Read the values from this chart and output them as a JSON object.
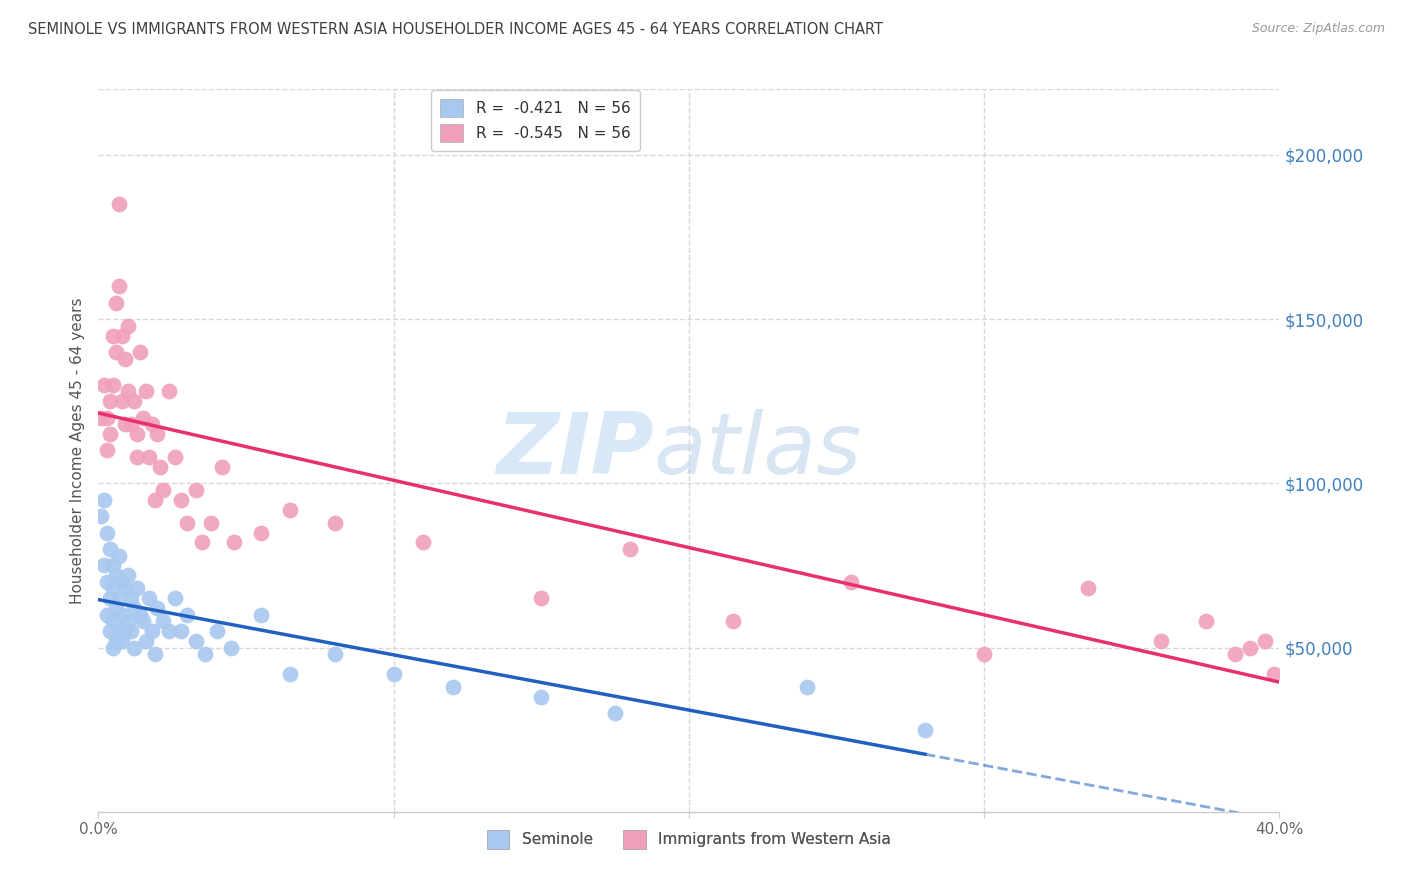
{
  "title": "SEMINOLE VS IMMIGRANTS FROM WESTERN ASIA HOUSEHOLDER INCOME AGES 45 - 64 YEARS CORRELATION CHART",
  "source": "Source: ZipAtlas.com",
  "ylabel": "Householder Income Ages 45 - 64 years",
  "x_min": 0.0,
  "x_max": 0.4,
  "y_min": 0,
  "y_max": 220000,
  "x_ticks": [
    0.0,
    0.1,
    0.2,
    0.3,
    0.4
  ],
  "x_tick_labels": [
    "0.0%",
    "",
    "",
    "",
    "40.0%"
  ],
  "y_ticks_right": [
    50000,
    100000,
    150000,
    200000
  ],
  "y_tick_labels_right": [
    "$50,000",
    "$100,000",
    "$150,000",
    "$200,000"
  ],
  "legend_entry_1": "R =  -0.421   N = 56",
  "legend_entry_2": "R =  -0.545   N = 56",
  "seminole_color": "#a8c8f0",
  "immigrants_color": "#f0a0b8",
  "seminole_line_color": "#2060c0",
  "immigrants_line_color": "#e83070",
  "watermark_zip": "ZIP",
  "watermark_atlas": "atlas",
  "background_color": "#ffffff",
  "grid_color": "#d8d8d8",
  "title_color": "#404040",
  "right_axis_color": "#4080c0",
  "seminole_x": [
    0.001,
    0.002,
    0.002,
    0.003,
    0.003,
    0.003,
    0.004,
    0.004,
    0.004,
    0.005,
    0.005,
    0.005,
    0.005,
    0.006,
    0.006,
    0.006,
    0.007,
    0.007,
    0.007,
    0.008,
    0.008,
    0.008,
    0.009,
    0.009,
    0.01,
    0.01,
    0.011,
    0.011,
    0.012,
    0.012,
    0.013,
    0.014,
    0.015,
    0.016,
    0.017,
    0.018,
    0.019,
    0.02,
    0.022,
    0.024,
    0.026,
    0.028,
    0.03,
    0.033,
    0.036,
    0.04,
    0.045,
    0.055,
    0.065,
    0.08,
    0.1,
    0.12,
    0.15,
    0.175,
    0.24,
    0.28
  ],
  "seminole_y": [
    90000,
    95000,
    75000,
    85000,
    70000,
    60000,
    80000,
    65000,
    55000,
    75000,
    68000,
    58000,
    50000,
    72000,
    62000,
    52000,
    78000,
    65000,
    55000,
    70000,
    60000,
    52000,
    68000,
    55000,
    72000,
    58000,
    65000,
    55000,
    62000,
    50000,
    68000,
    60000,
    58000,
    52000,
    65000,
    55000,
    48000,
    62000,
    58000,
    55000,
    65000,
    55000,
    60000,
    52000,
    48000,
    55000,
    50000,
    60000,
    42000,
    48000,
    42000,
    38000,
    35000,
    30000,
    38000,
    25000
  ],
  "immigrants_x": [
    0.001,
    0.002,
    0.003,
    0.003,
    0.004,
    0.004,
    0.005,
    0.005,
    0.006,
    0.006,
    0.007,
    0.007,
    0.008,
    0.008,
    0.009,
    0.009,
    0.01,
    0.01,
    0.011,
    0.012,
    0.013,
    0.013,
    0.014,
    0.015,
    0.016,
    0.017,
    0.018,
    0.019,
    0.02,
    0.021,
    0.022,
    0.024,
    0.026,
    0.028,
    0.03,
    0.033,
    0.035,
    0.038,
    0.042,
    0.046,
    0.055,
    0.065,
    0.08,
    0.11,
    0.15,
    0.18,
    0.215,
    0.255,
    0.3,
    0.335,
    0.36,
    0.375,
    0.385,
    0.39,
    0.395,
    0.398
  ],
  "immigrants_y": [
    120000,
    130000,
    120000,
    110000,
    125000,
    115000,
    145000,
    130000,
    155000,
    140000,
    185000,
    160000,
    145000,
    125000,
    138000,
    118000,
    148000,
    128000,
    118000,
    125000,
    115000,
    108000,
    140000,
    120000,
    128000,
    108000,
    118000,
    95000,
    115000,
    105000,
    98000,
    128000,
    108000,
    95000,
    88000,
    98000,
    82000,
    88000,
    105000,
    82000,
    85000,
    92000,
    88000,
    82000,
    65000,
    80000,
    58000,
    70000,
    48000,
    68000,
    52000,
    58000,
    48000,
    50000,
    52000,
    42000
  ]
}
